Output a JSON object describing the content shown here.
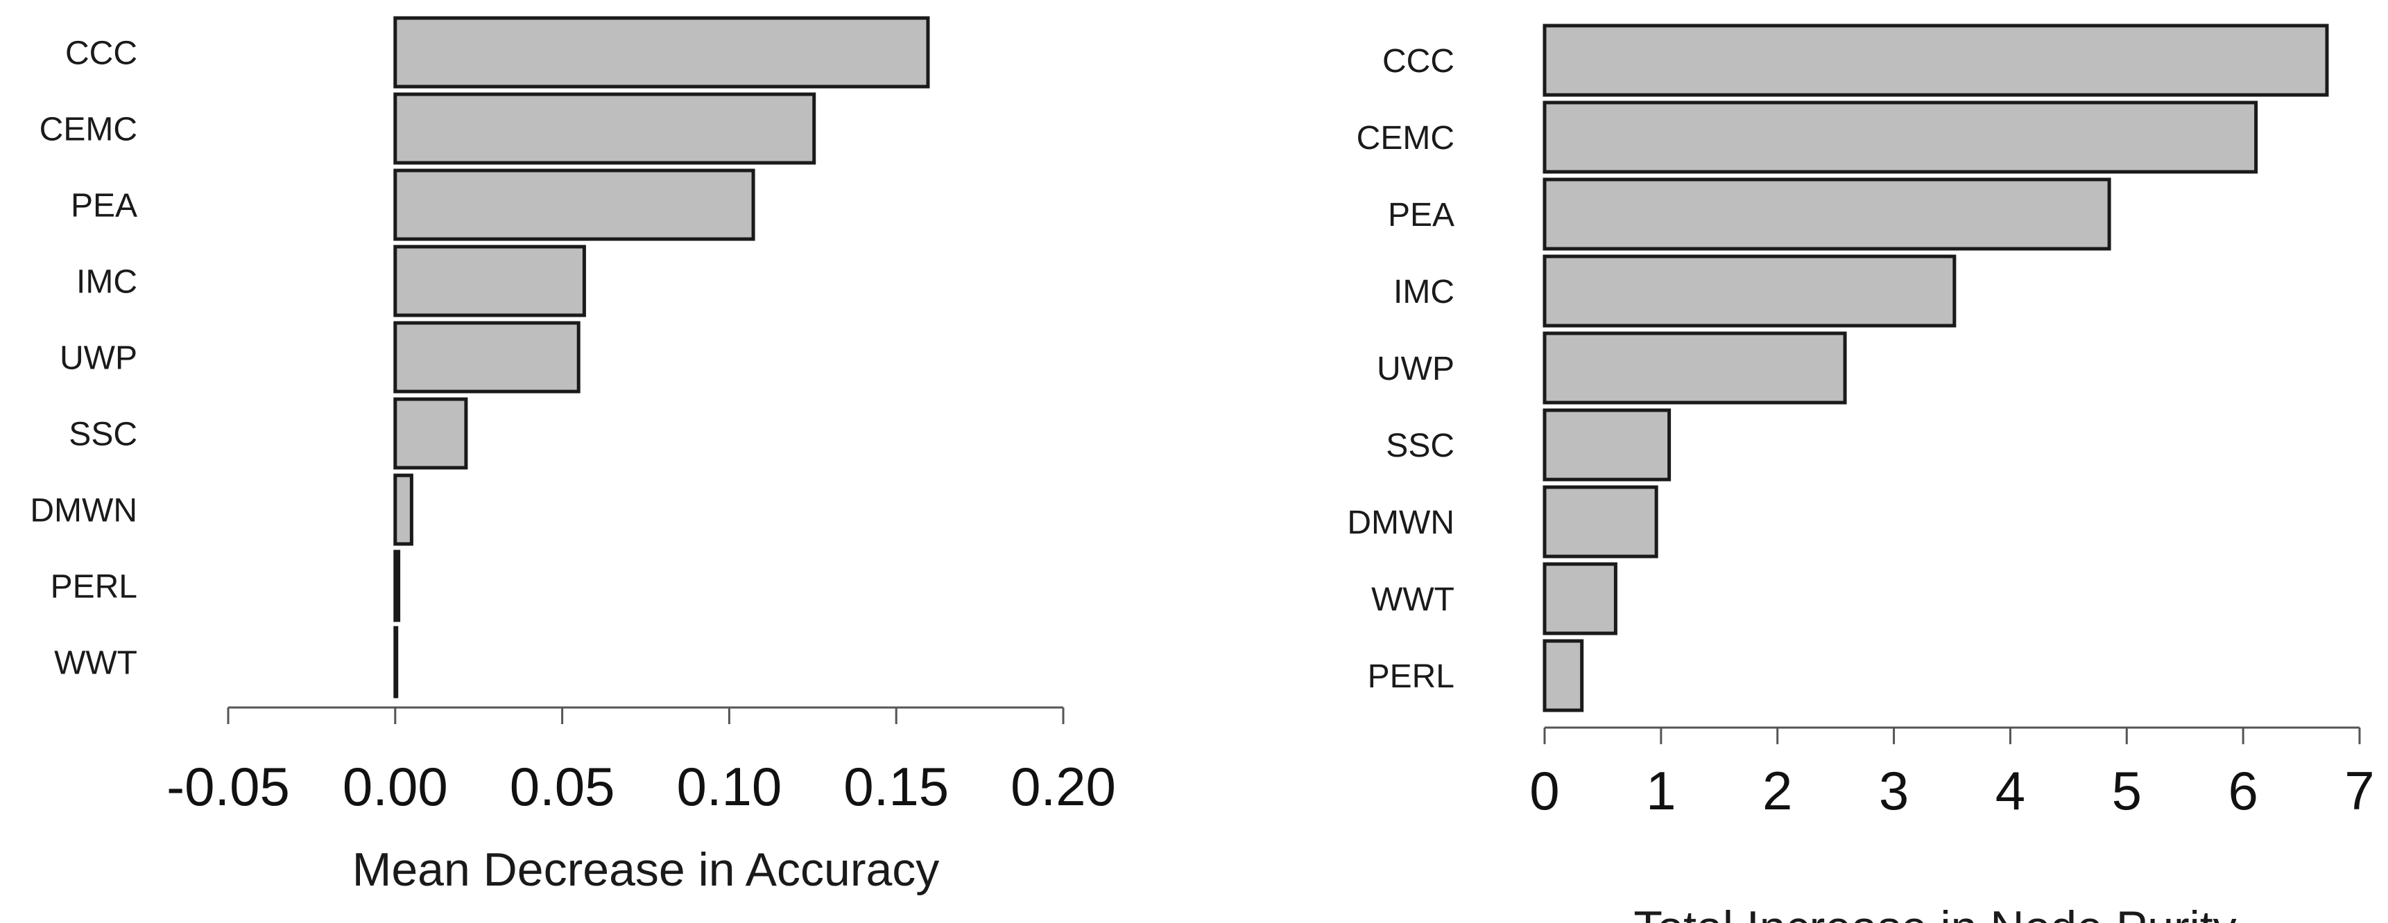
{
  "chart_data": [
    {
      "type": "bar",
      "orientation": "horizontal",
      "categories": [
        "CCC",
        "CEMC",
        "PEA",
        "IMC",
        "UWP",
        "SSC",
        "DMWN",
        "PERL",
        "WWT"
      ],
      "values": [
        0.1595,
        0.1254,
        0.1072,
        0.0566,
        0.0549,
        0.0212,
        0.0049,
        0.001,
        0.0004
      ],
      "xlabel": "Mean Decrease in Accuracy",
      "ylabel": "",
      "title": "",
      "xlim": [
        -0.05,
        0.2
      ],
      "xticks": [
        "-0.05",
        "0.00",
        "0.05",
        "0.10",
        "0.15",
        "0.20"
      ],
      "bar_color": "#bebebe",
      "grid": false
    },
    {
      "type": "bar",
      "orientation": "horizontal",
      "categories": [
        "CCC",
        "CEMC",
        "PEA",
        "IMC",
        "UWP",
        "SSC",
        "DMWN",
        "WWT",
        "PERL"
      ],
      "values": [
        6.72,
        6.11,
        4.85,
        3.52,
        2.58,
        1.07,
        0.96,
        0.61,
        0.32
      ],
      "xlabel": "Total Increase in Node Purity",
      "ylabel": "",
      "title": "",
      "xlim": [
        0,
        7
      ],
      "xticks": [
        "0",
        "1",
        "2",
        "3",
        "4",
        "5",
        "6",
        "7"
      ],
      "bar_color": "#bebebe",
      "grid": false
    }
  ]
}
